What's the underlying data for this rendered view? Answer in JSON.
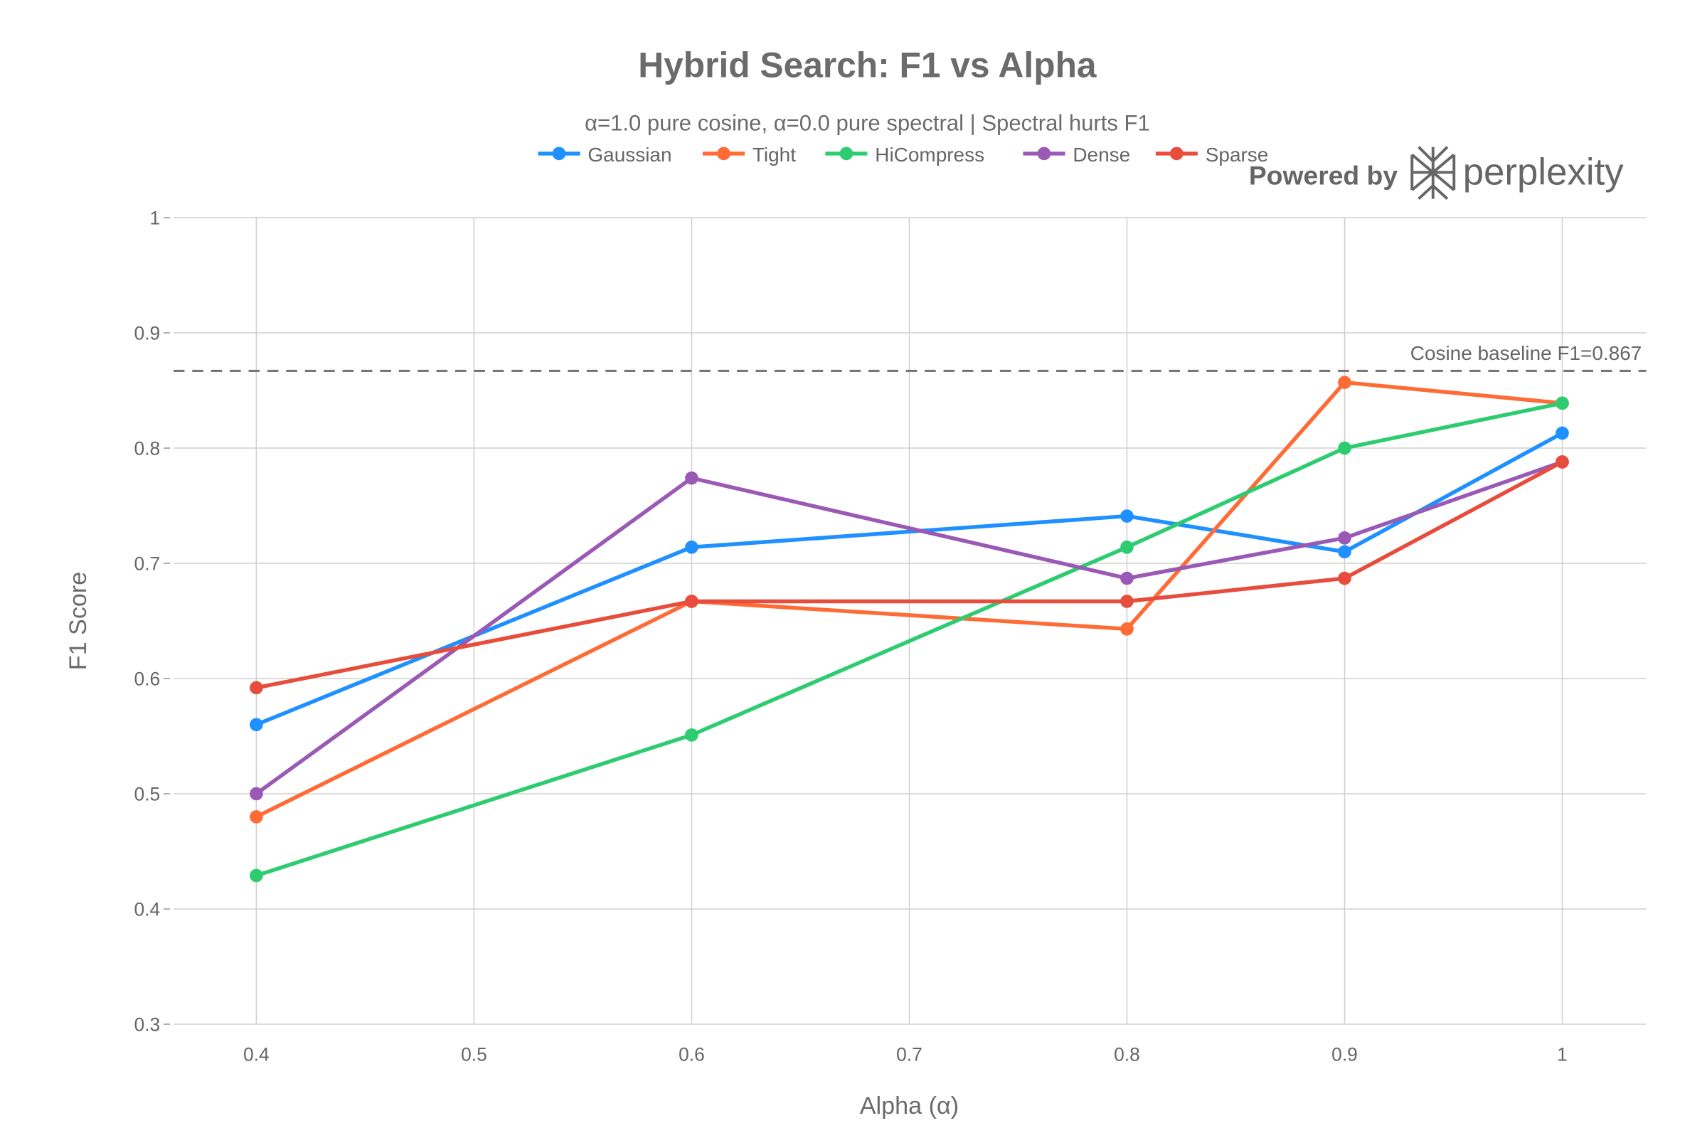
{
  "chart_data": {
    "type": "line",
    "title": "Hybrid Search: F1 vs Alpha",
    "subtitle": "α=1.0 pure cosine, α=0.0 pure spectral | Spectral hurts F1",
    "xlabel": "Alpha (α)",
    "ylabel": "F1 Score",
    "xlim": [
      0.36,
      1.04
    ],
    "ylim": [
      0.3,
      1.0
    ],
    "x_ticks": [
      0.4,
      0.5,
      0.6,
      0.7,
      0.8,
      0.9,
      1
    ],
    "x_tick_labels": [
      "0.4",
      "0.5",
      "0.6",
      "0.7",
      "0.8",
      "0.9",
      "1"
    ],
    "y_ticks": [
      0.3,
      0.4,
      0.5,
      0.6,
      0.7,
      0.8,
      0.9,
      1
    ],
    "y_tick_labels": [
      "0.3",
      "0.4",
      "0.5",
      "0.6",
      "0.7",
      "0.8",
      "0.9",
      "1"
    ],
    "grid": true,
    "legend_placement": "top-center",
    "x": [
      0.4,
      0.6,
      0.8,
      0.9,
      1.0
    ],
    "series": [
      {
        "name": "Gaussian",
        "color": "#1E90FF",
        "values": [
          0.56,
          0.714,
          0.741,
          0.71,
          0.813
        ]
      },
      {
        "name": "Tight",
        "color": "#FF6B35",
        "values": [
          0.48,
          0.667,
          0.643,
          0.857,
          0.839
        ]
      },
      {
        "name": "HiCompress",
        "color": "#2ECC71",
        "values": [
          0.429,
          0.551,
          0.714,
          0.8,
          0.839
        ]
      },
      {
        "name": "Dense",
        "color": "#9B59B6",
        "values": [
          0.5,
          0.774,
          0.687,
          0.722,
          0.788
        ]
      },
      {
        "name": "Sparse",
        "color": "#E74C3C",
        "values": [
          0.592,
          0.667,
          0.667,
          0.687,
          0.788
        ]
      }
    ],
    "reference_line": {
      "value": 0.867,
      "label": "Cosine baseline F1=0.867",
      "color": "#777777",
      "style": "dashed"
    }
  },
  "watermark": {
    "text_prefix": "Powered by",
    "brand": "perplexity"
  }
}
